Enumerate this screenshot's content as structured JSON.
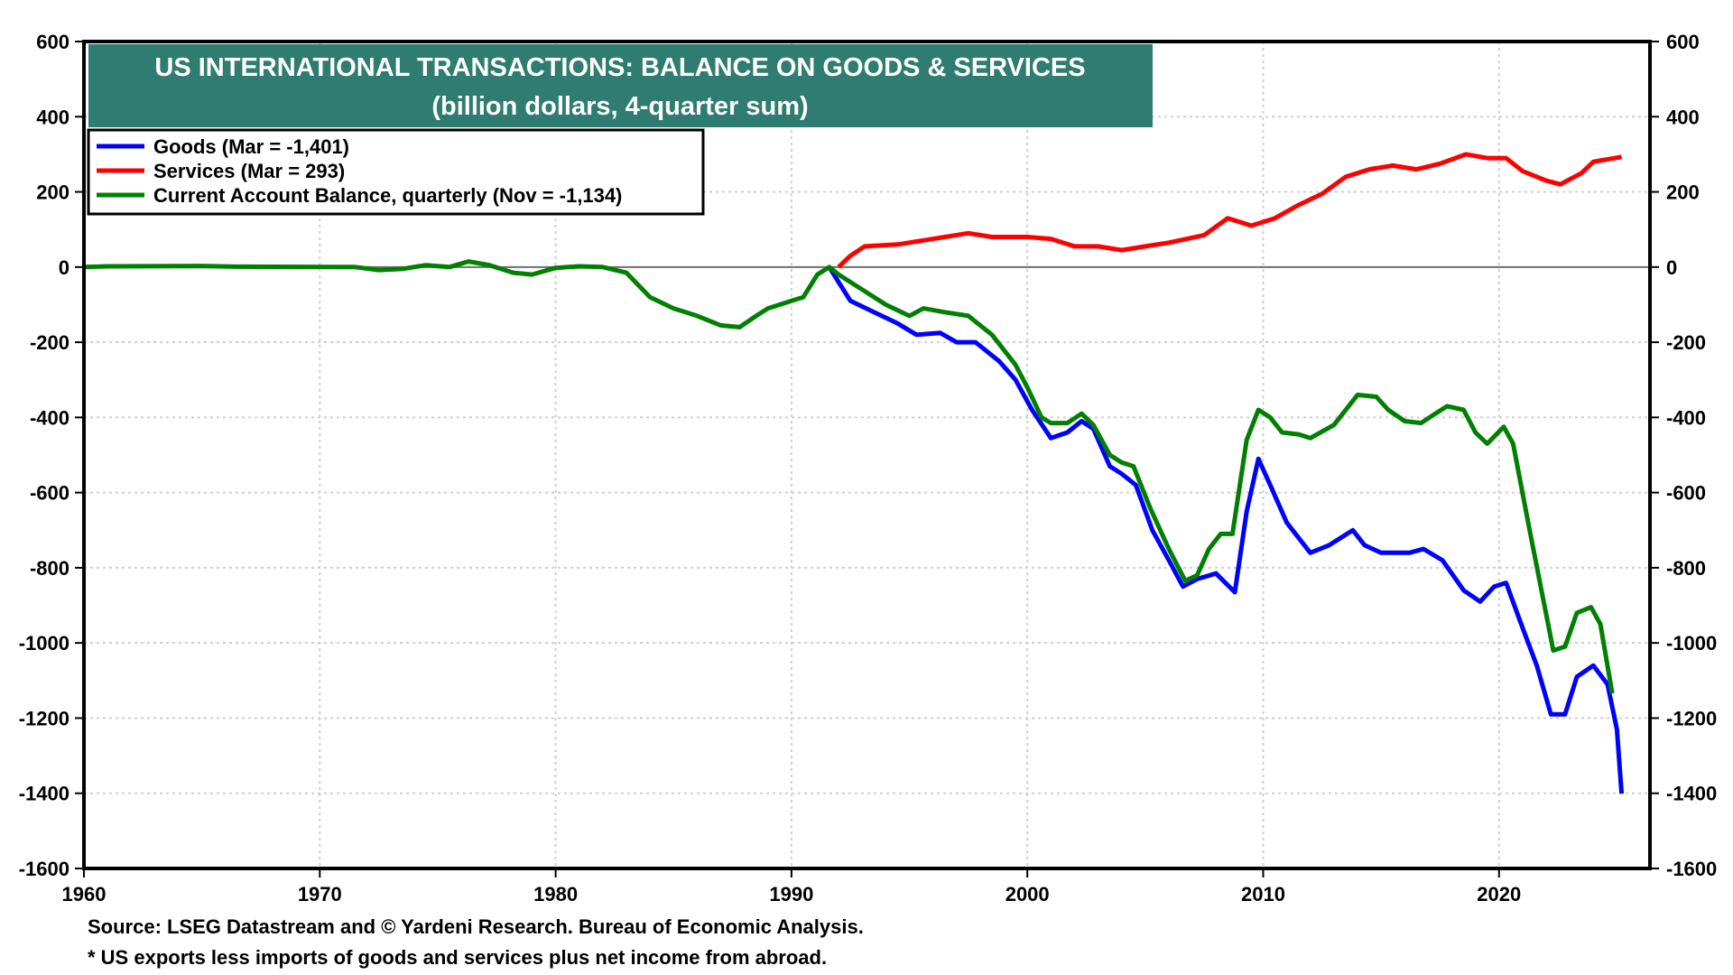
{
  "chart_data": {
    "type": "line",
    "title": "US INTERNATIONAL TRANSACTIONS: BALANCE ON GOODS & SERVICES",
    "subtitle": "(billion dollars, 4-quarter sum)",
    "xlabel": "",
    "ylabel": "",
    "xlim": [
      1960,
      2026.4
    ],
    "ylim": [
      -1600,
      600
    ],
    "x_ticks": [
      "1960",
      "1970",
      "1980",
      "1990",
      "2000",
      "2010",
      "2020"
    ],
    "y_ticks": [
      "600",
      "400",
      "200",
      "0",
      "-200",
      "-400",
      "-600",
      "-800",
      "-1000",
      "-1200",
      "-1400",
      "-1600"
    ],
    "y_tick_values": [
      600,
      400,
      200,
      0,
      -200,
      -400,
      -600,
      -800,
      -1000,
      -1200,
      -1400,
      -1600
    ],
    "x_tick_values": [
      1960,
      1970,
      1980,
      1990,
      2000,
      2010,
      2020
    ],
    "grid": true,
    "legend_position": "top-left",
    "colors": {
      "title_box": "#2e7d70",
      "goods": "#0000ff",
      "services": "#ff0000",
      "current_account": "#008000",
      "zero_line": "#6e6e6e",
      "grid": "#cfcfcf"
    },
    "series": [
      {
        "name": "Goods (Mar = -1,401)",
        "key": "goods",
        "x": [
          1991.6,
          1992.0,
          1992.5,
          1993.5,
          1994.5,
          1995.3,
          1996.3,
          1997.0,
          1997.8,
          1998.8,
          1999.5,
          2000.2,
          2001.0,
          2001.7,
          2002.3,
          2002.8,
          2003.5,
          2004.0,
          2004.6,
          2005.3,
          2006.0,
          2006.6,
          2007.2,
          2008.0,
          2008.8,
          2009.3,
          2009.8,
          2010.3,
          2011.0,
          2012.0,
          2012.8,
          2013.8,
          2014.3,
          2015.0,
          2016.2,
          2016.8,
          2017.6,
          2018.5,
          2019.2,
          2019.8,
          2020.3,
          2021.0,
          2021.6,
          2022.2,
          2022.8,
          2023.3,
          2024.0,
          2024.6,
          2025.0,
          2025.2
        ],
        "values": [
          0,
          -40,
          -90,
          -120,
          -150,
          -180,
          -175,
          -200,
          -200,
          -250,
          -300,
          -380,
          -455,
          -440,
          -410,
          -430,
          -530,
          -550,
          -580,
          -700,
          -780,
          -850,
          -830,
          -815,
          -865,
          -650,
          -510,
          -580,
          -680,
          -760,
          -740,
          -700,
          -740,
          -760,
          -760,
          -750,
          -780,
          -860,
          -890,
          -850,
          -840,
          -960,
          -1060,
          -1190,
          -1190,
          -1090,
          -1060,
          -1110,
          -1230,
          -1401
        ]
      },
      {
        "name": "Services (Mar = 293)",
        "key": "services",
        "x": [
          1992.0,
          1992.5,
          1993.1,
          1994.5,
          1995.5,
          1997.5,
          1998.5,
          2000.0,
          2001.0,
          2002.0,
          2003.0,
          2004.0,
          2005.0,
          2006.0,
          2007.5,
          2008.5,
          2009.5,
          2010.5,
          2011.5,
          2012.5,
          2013.5,
          2014.5,
          2015.5,
          2016.5,
          2017.5,
          2018.6,
          2019.5,
          2020.3,
          2021.0,
          2022.0,
          2022.6,
          2023.5,
          2024.0,
          2025.2
        ],
        "values": [
          0,
          30,
          55,
          60,
          70,
          90,
          80,
          80,
          75,
          55,
          55,
          45,
          55,
          65,
          85,
          130,
          110,
          130,
          165,
          195,
          240,
          260,
          270,
          260,
          275,
          300,
          290,
          290,
          255,
          230,
          220,
          250,
          280,
          293
        ]
      },
      {
        "name": "Current Account Balance, quarterly (Nov = -1,134)",
        "key": "current_account",
        "x": [
          1960.0,
          1961.0,
          1965.0,
          1966.5,
          1971.5,
          1972.5,
          1973.5,
          1974.5,
          1975.5,
          1976.3,
          1977.2,
          1978.2,
          1979.0,
          1980.0,
          1981.0,
          1982.0,
          1983.0,
          1984.0,
          1985.0,
          1986.0,
          1987.0,
          1987.8,
          1988.5,
          1989.0,
          1990.0,
          1990.5,
          1991.1,
          1991.6,
          1992.0,
          1993.0,
          1994.0,
          1995.0,
          1995.6,
          1996.5,
          1997.5,
          1998.5,
          1999.5,
          2000.0,
          2000.6,
          2001.0,
          2001.7,
          2002.3,
          2002.8,
          2003.5,
          2004.0,
          2004.5,
          2005.2,
          2006.0,
          2006.7,
          2007.2,
          2007.7,
          2008.2,
          2008.7,
          2009.3,
          2009.8,
          2010.3,
          2010.8,
          2011.5,
          2012.0,
          2013.0,
          2014.0,
          2014.8,
          2015.3,
          2016.0,
          2016.7,
          2017.3,
          2017.8,
          2018.5,
          2019.0,
          2019.5,
          2020.2,
          2020.6,
          2021.3,
          2021.8,
          2022.3,
          2022.8,
          2023.3,
          2023.9,
          2024.3,
          2024.8
        ],
        "values": [
          0,
          2,
          3,
          1,
          0,
          -8,
          -5,
          5,
          0,
          15,
          5,
          -15,
          -20,
          -2,
          2,
          0,
          -15,
          -80,
          -110,
          -130,
          -155,
          -160,
          -130,
          -110,
          -90,
          -80,
          -20,
          0,
          -20,
          -60,
          -100,
          -130,
          -110,
          -120,
          -130,
          -180,
          -260,
          -320,
          -400,
          -415,
          -415,
          -390,
          -420,
          -500,
          -520,
          -530,
          -640,
          -750,
          -835,
          -820,
          -750,
          -710,
          -710,
          -460,
          -380,
          -400,
          -440,
          -445,
          -455,
          -420,
          -340,
          -345,
          -380,
          -410,
          -415,
          -390,
          -370,
          -380,
          -440,
          -470,
          -425,
          -470,
          -700,
          -860,
          -1020,
          -1010,
          -920,
          -905,
          -950,
          -1134
        ]
      }
    ]
  },
  "legend": {
    "items": [
      {
        "label": "Goods (Mar = -1,401)",
        "color": "#0000ff"
      },
      {
        "label": "Services (Mar = 293)",
        "color": "#ff0000"
      },
      {
        "label": "Current Account Balance, quarterly (Nov = -1,134)",
        "color": "#008000"
      }
    ]
  },
  "footer": {
    "source": "Source: LSEG Datastream and © Yardeni Research. Bureau of Economic Analysis.",
    "note": "* US exports less imports of goods and services plus net income from abroad."
  }
}
